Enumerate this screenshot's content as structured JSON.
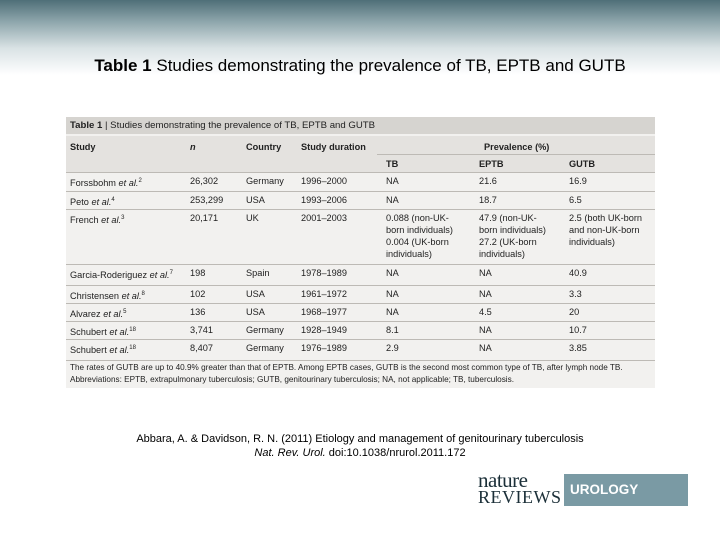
{
  "slide": {
    "title_bold": "Table 1",
    "title_rest": " Studies demonstrating the prevalence of TB, EPTB and GUTB"
  },
  "table": {
    "caption_bold": "Table 1",
    "caption_rest": " | Studies demonstrating the prevalence of TB, EPTB and GUTB",
    "headers": {
      "study": "Study",
      "n": "n",
      "country": "Country",
      "duration": "Study duration",
      "prevalence": "Prevalence (%)",
      "tb": "TB",
      "eptb": "EPTB",
      "gutb": "GUTB"
    },
    "rows": [
      {
        "study_name": "Forssbohm ",
        "etal": "et al.",
        "ref": "2",
        "n": "26,302",
        "country": "Germany",
        "duration": "1996–2000",
        "tb": [
          "NA"
        ],
        "eptb": [
          "21.6"
        ],
        "gutb": [
          "16.9"
        ]
      },
      {
        "study_name": "Peto ",
        "etal": "et al.",
        "ref": "4",
        "n": "253,299",
        "country": "USA",
        "duration": "1993–2006",
        "tb": [
          "NA"
        ],
        "eptb": [
          "18.7"
        ],
        "gutb": [
          "6.5"
        ]
      },
      {
        "study_name": "French ",
        "etal": "et al.",
        "ref": "3",
        "n": "20,171",
        "country": "UK",
        "duration": "2001–2003",
        "tb": [
          "0.088 (non-UK-",
          "born individuals)",
          "0.004 (UK-born",
          "individuals)"
        ],
        "eptb": [
          "47.9 (non-UK-",
          "born individuals)",
          "27.2 (UK-born",
          "individuals)"
        ],
        "gutb": [
          "2.5 (both UK-born",
          "and non-UK-born",
          "individuals)"
        ]
      },
      {
        "study_name": "Garcia-Roderiguez ",
        "etal": "et al.",
        "ref": "7",
        "n": "198",
        "country": "Spain",
        "duration": "1978–1989",
        "tb": [
          "NA"
        ],
        "eptb": [
          "NA"
        ],
        "gutb": [
          "40.9"
        ]
      },
      {
        "study_name": "Christensen ",
        "etal": "et al.",
        "ref": "8",
        "n": "102",
        "country": "USA",
        "duration": "1961–1972",
        "tb": [
          "NA"
        ],
        "eptb": [
          "NA"
        ],
        "gutb": [
          "3.3"
        ]
      },
      {
        "study_name": "Alvarez ",
        "etal": "et al.",
        "ref": "5",
        "n": "136",
        "country": "USA",
        "duration": "1968–1977",
        "tb": [
          "NA"
        ],
        "eptb": [
          "4.5"
        ],
        "gutb": [
          "20"
        ]
      },
      {
        "study_name": "Schubert ",
        "etal": "et al.",
        "ref": "18",
        "n": "3,741",
        "country": "Germany",
        "duration": "1928–1949",
        "tb": [
          "8.1"
        ],
        "eptb": [
          "NA"
        ],
        "gutb": [
          "10.7"
        ]
      },
      {
        "study_name": "Schubert ",
        "etal": "et al.",
        "ref": "18",
        "n": "8,407",
        "country": "Germany",
        "duration": "1976–1989",
        "tb": [
          "2.9"
        ],
        "eptb": [
          "NA"
        ],
        "gutb": [
          "3.85"
        ]
      }
    ],
    "footnote": [
      "The rates of GUTB are up to 40.9% greater than that of EPTB. Among EPTB cases, GUTB is the second most common type of TB, after lymph node TB.",
      "Abbreviations: EPTB, extrapulmonary tuberculosis; GUTB, genitourinary tuberculosis; NA, not applicable; TB, tuberculosis."
    ]
  },
  "citation": {
    "line1": "Abbara, A. & Davidson, R. N. (2011) Etiology and management of genitourinary tuberculosis",
    "journal": "Nat. Rev. Urol.",
    "doi": " doi:10.1038/nrurol.2011.172"
  },
  "logo": {
    "word1": "nature",
    "word2": "REVIEWS",
    "section": "UROLOGY"
  }
}
